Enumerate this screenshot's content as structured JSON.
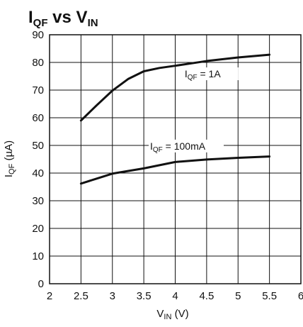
{
  "chart_data": {
    "type": "line",
    "title": {
      "main": "I",
      "sub": "QF",
      "middle": " vs V",
      "sub2": "IN"
    },
    "xlabel": {
      "main": "V",
      "sub": "IN",
      "suffix": " (V)"
    },
    "ylabel": {
      "main": "I",
      "sub": "QF",
      "suffix": " (µA)"
    },
    "xlim": [
      2,
      6
    ],
    "ylim": [
      0,
      90
    ],
    "x_ticks": [
      2,
      2.5,
      3,
      3.5,
      4,
      4.5,
      5,
      5.5,
      6
    ],
    "x_tick_labels": [
      "2",
      "2.5",
      "3",
      "3.5",
      "4",
      "4.5",
      "5",
      "5.5",
      "6"
    ],
    "y_ticks": [
      0,
      10,
      20,
      30,
      40,
      50,
      60,
      70,
      80,
      90
    ],
    "y_tick_labels": [
      "0",
      "10",
      "20",
      "30",
      "40",
      "50",
      "60",
      "70",
      "80",
      "90"
    ],
    "grid": true,
    "series": [
      {
        "label": {
          "main": "I",
          "sub": "QF",
          "suffix": " = 1A"
        },
        "x": [
          2.5,
          2.75,
          3.0,
          3.25,
          3.5,
          3.75,
          4.0,
          4.5,
          5.0,
          5.5
        ],
        "y": [
          59,
          64.5,
          69.8,
          74,
          76.8,
          78,
          78.8,
          80.5,
          81.8,
          82.8
        ]
      },
      {
        "label": {
          "main": "I",
          "sub": "QF",
          "suffix": " = 100mA"
        },
        "x": [
          2.5,
          2.75,
          3.0,
          3.5,
          4.0,
          4.5,
          5.0,
          5.5
        ],
        "y": [
          36.2,
          38,
          39.8,
          41.7,
          44,
          44.9,
          45.5,
          46
        ]
      }
    ]
  }
}
